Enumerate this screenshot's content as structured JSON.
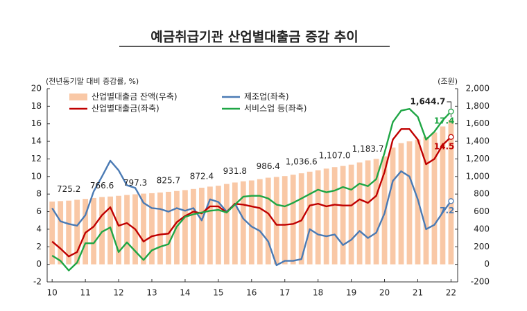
{
  "chart_data": {
    "type": "combo",
    "title": "예금취급기관 산업별대출금 증감 추이",
    "y_label": "(전년동기말 대비 증감률, %)",
    "y2_label": "(조원)",
    "grid": false,
    "x": [
      10,
      10.25,
      10.5,
      10.75,
      11,
      11.25,
      11.5,
      11.75,
      12,
      12.25,
      12.5,
      12.75,
      13,
      13.25,
      13.5,
      13.75,
      14,
      14.25,
      14.5,
      14.75,
      15,
      15.25,
      15.5,
      15.75,
      16,
      16.25,
      16.5,
      16.75,
      17,
      17.25,
      17.5,
      17.75,
      18,
      18.25,
      18.5,
      18.75,
      19,
      19.25,
      19.5,
      19.75,
      20,
      20.25,
      20.5,
      20.75,
      21,
      21.25,
      21.5,
      21.75,
      22
    ],
    "xlim": [
      9.85,
      22.2
    ],
    "xticks": [
      10,
      11,
      12,
      13,
      14,
      15,
      16,
      17,
      18,
      19,
      20,
      21,
      22
    ],
    "ylim": [
      -2,
      20
    ],
    "yticks": [
      -2,
      0,
      2,
      4,
      6,
      8,
      10,
      12,
      14,
      16,
      18,
      20
    ],
    "y2lim": [
      -200,
      2000
    ],
    "y2ticks": [
      {
        "value": -200,
        "label": "-200"
      },
      0,
      200,
      400,
      600,
      800,
      {
        "value": 1000,
        "label": "1,000"
      },
      {
        "value": 1200,
        "label": "1,200"
      },
      {
        "value": 1400,
        "label": "1,400"
      },
      {
        "value": 1600,
        "label": "1,600"
      },
      {
        "value": 1800,
        "label": "1,800"
      },
      {
        "value": 2000,
        "label": "2,000"
      }
    ],
    "series": [
      {
        "name": "산업별대출금 잔액(우축)",
        "type": "bar",
        "axis": "y2",
        "color": "#f9c8a6",
        "values": [
          715,
          720,
          725.2,
          735,
          745,
          755,
          766.6,
          772,
          780,
          790,
          797.3,
          805,
          810,
          818,
          825.7,
          835,
          845,
          858,
          872.4,
          885,
          895,
          915,
          931.8,
          945,
          955,
          970,
          986.4,
          995,
          1005,
          1020,
          1036.6,
          1055,
          1070,
          1090,
          1107.0,
          1120,
          1135,
          1160,
          1183.7,
          1200,
          1230,
          1330,
          1380,
          1400,
          1420,
          1450,
          1500,
          1570,
          1644.7
        ],
        "value_labels": [
          null,
          null,
          "725.2",
          null,
          null,
          null,
          "766.6",
          null,
          null,
          null,
          "797.3",
          null,
          null,
          null,
          "825.7",
          null,
          null,
          null,
          "872.4",
          null,
          null,
          null,
          "931.8",
          null,
          null,
          null,
          "986.4",
          null,
          null,
          null,
          "1,036.6",
          null,
          null,
          null,
          "1,107.0",
          null,
          null,
          null,
          "1,183.7",
          null,
          null,
          null,
          null,
          null,
          null,
          null,
          null,
          null,
          "1,644.7"
        ]
      },
      {
        "name": "제조업(좌축)",
        "type": "line",
        "color": "#4a7ab4",
        "values": [
          6.4,
          4.9,
          4.6,
          4.4,
          5.6,
          8.3,
          10.0,
          11.8,
          10.7,
          9.0,
          8.7,
          7.0,
          6.4,
          6.3,
          6.0,
          6.4,
          6.1,
          6.4,
          5.0,
          7.4,
          7.1,
          6.0,
          6.9,
          5.2,
          4.3,
          3.8,
          2.6,
          -0.1,
          0.4,
          0.4,
          0.6,
          4.0,
          3.4,
          3.2,
          3.4,
          2.2,
          2.8,
          3.8,
          3.0,
          3.6,
          5.8,
          9.5,
          10.6,
          10.0,
          7.4,
          4.0,
          4.5,
          5.9,
          7.2
        ],
        "value_labels": [
          null,
          null,
          null,
          null,
          null,
          null,
          null,
          null,
          null,
          null,
          null,
          null,
          null,
          null,
          null,
          null,
          null,
          null,
          null,
          null,
          null,
          null,
          null,
          null,
          null,
          null,
          null,
          null,
          null,
          null,
          null,
          null,
          null,
          null,
          null,
          null,
          null,
          null,
          null,
          null,
          null,
          null,
          null,
          null,
          null,
          null,
          null,
          null,
          "7.2"
        ]
      },
      {
        "name": "산업별대출금(좌축)",
        "type": "line",
        "color": "#c00000",
        "values": [
          2.6,
          1.8,
          0.9,
          1.4,
          3.6,
          4.3,
          5.6,
          6.5,
          4.4,
          4.7,
          4.0,
          2.6,
          3.2,
          3.4,
          3.5,
          4.8,
          5.5,
          6.0,
          5.8,
          6.6,
          6.6,
          5.9,
          6.9,
          6.8,
          6.6,
          6.4,
          5.8,
          4.5,
          4.5,
          4.6,
          5.0,
          6.7,
          6.9,
          6.6,
          6.8,
          6.7,
          6.7,
          7.4,
          7.0,
          7.8,
          10.5,
          14.2,
          15.4,
          15.4,
          14.2,
          11.4,
          12.0,
          13.6,
          14.5
        ],
        "value_labels": [
          null,
          null,
          null,
          null,
          null,
          null,
          null,
          null,
          null,
          null,
          null,
          null,
          null,
          null,
          null,
          null,
          null,
          null,
          null,
          null,
          null,
          null,
          null,
          null,
          null,
          null,
          null,
          null,
          null,
          null,
          null,
          null,
          null,
          null,
          null,
          null,
          null,
          null,
          null,
          null,
          null,
          null,
          null,
          null,
          null,
          null,
          null,
          null,
          "14.5"
        ]
      },
      {
        "name": "서비스업 등(좌축)",
        "type": "line",
        "color": "#1fa645",
        "values": [
          1.0,
          0.4,
          -0.7,
          0.2,
          2.4,
          2.4,
          3.7,
          4.2,
          1.4,
          2.5,
          1.5,
          0.5,
          1.6,
          2.0,
          2.3,
          4.3,
          5.4,
          5.7,
          5.9,
          6.1,
          6.2,
          5.9,
          6.8,
          7.7,
          7.8,
          7.8,
          7.5,
          6.8,
          6.6,
          7.0,
          7.5,
          8.0,
          8.5,
          8.2,
          8.4,
          8.8,
          8.5,
          9.2,
          8.9,
          9.7,
          12.7,
          16.2,
          17.5,
          17.7,
          16.8,
          14.2,
          15.1,
          16.4,
          17.4
        ],
        "value_labels": [
          null,
          null,
          null,
          null,
          null,
          null,
          null,
          null,
          null,
          null,
          null,
          null,
          null,
          null,
          null,
          null,
          null,
          null,
          null,
          null,
          null,
          null,
          null,
          null,
          null,
          null,
          null,
          null,
          null,
          null,
          null,
          null,
          null,
          null,
          null,
          null,
          null,
          null,
          null,
          null,
          null,
          null,
          null,
          null,
          null,
          null,
          null,
          null,
          "17.4"
        ]
      }
    ]
  }
}
